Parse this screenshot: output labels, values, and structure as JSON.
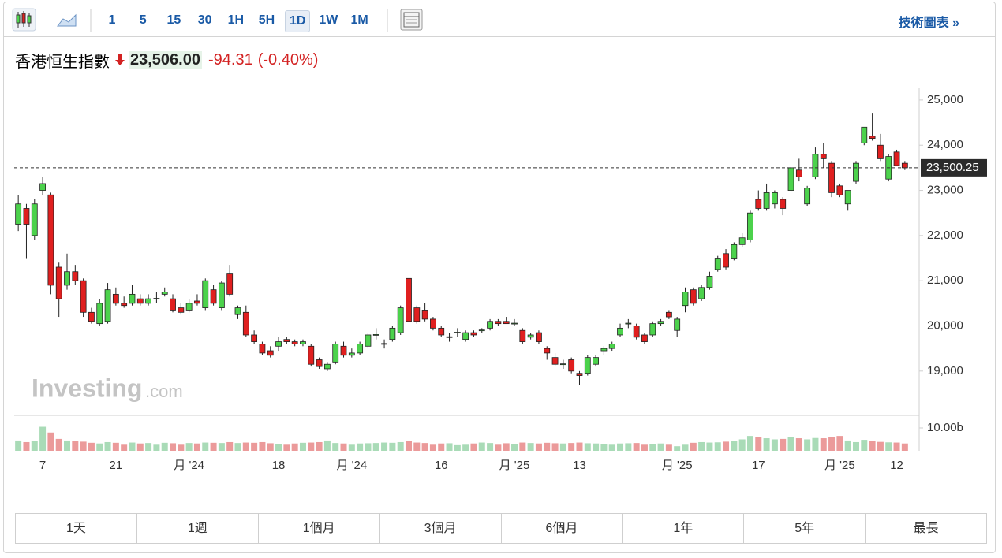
{
  "toolbar": {
    "intervals": [
      "1",
      "5",
      "15",
      "30",
      "1H",
      "5H",
      "1D",
      "1W",
      "1M"
    ],
    "selected_interval": "1D",
    "link": "技術圖表 »"
  },
  "quote": {
    "name": "香港恒生指數",
    "price": "23,506.00",
    "change": "-94.31",
    "change_percent": "(-0.40%)"
  },
  "chart_data": {
    "type": "candlestick",
    "watermark": [
      "Investing",
      ".com"
    ],
    "up_color": "#4cd24c",
    "down_color": "#e01f1f",
    "up_volume_color": "#a9dbb7",
    "down_volume_color": "#eb9a9a",
    "categories": [
      null,
      null,
      null,
      "7",
      null,
      null,
      null,
      null,
      null,
      null,
      null,
      null,
      "21",
      null,
      null,
      null,
      null,
      null,
      null,
      null,
      null,
      "月 '24",
      null,
      null,
      null,
      null,
      null,
      null,
      null,
      null,
      null,
      null,
      "18",
      null,
      null,
      null,
      null,
      null,
      null,
      null,
      null,
      "月 '24",
      null,
      null,
      null,
      null,
      null,
      null,
      null,
      null,
      null,
      null,
      "16",
      null,
      null,
      null,
      null,
      null,
      null,
      null,
      null,
      "月 '25",
      null,
      null,
      null,
      null,
      null,
      null,
      null,
      "13",
      null,
      null,
      null,
      null,
      null,
      null,
      null,
      null,
      null,
      null,
      null,
      "月 '25",
      null,
      null,
      null,
      null,
      null,
      null,
      null,
      null,
      null,
      "17",
      null,
      null,
      null,
      null,
      null,
      null,
      null,
      null,
      null,
      "月 '25",
      null,
      null,
      null,
      null,
      null,
      null,
      "12",
      null
    ],
    "ohlc": [
      [
        22250,
        22900,
        22100,
        22700
      ],
      [
        22600,
        22700,
        21500,
        22250
      ],
      [
        22000,
        22800,
        21900,
        22700
      ],
      [
        23000,
        23300,
        22900,
        23150
      ],
      [
        22900,
        22950,
        20700,
        20900
      ],
      [
        21300,
        21400,
        20200,
        20600
      ],
      [
        20900,
        21600,
        20800,
        21200
      ],
      [
        21200,
        21350,
        20900,
        21000
      ],
      [
        21000,
        21050,
        20200,
        20300
      ],
      [
        20300,
        20400,
        20050,
        20100
      ],
      [
        20050,
        20600,
        20000,
        20500
      ],
      [
        20100,
        20950,
        20050,
        20800
      ],
      [
        20700,
        20850,
        20450,
        20500
      ],
      [
        20500,
        20650,
        20400,
        20450
      ],
      [
        20500,
        20900,
        20450,
        20700
      ],
      [
        20600,
        20700,
        20450,
        20500
      ],
      [
        20500,
        20700,
        20450,
        20600
      ],
      [
        20600,
        20750,
        20500,
        20610
      ],
      [
        20700,
        20850,
        20650,
        20750
      ],
      [
        20600,
        20700,
        20300,
        20350
      ],
      [
        20400,
        20500,
        20250,
        20300
      ],
      [
        20350,
        20600,
        20300,
        20500
      ],
      [
        20550,
        20700,
        20450,
        20500
      ],
      [
        20400,
        21050,
        20350,
        21000
      ],
      [
        20800,
        20900,
        20450,
        20500
      ],
      [
        20400,
        21000,
        20350,
        20950
      ],
      [
        21150,
        21350,
        20650,
        20700
      ],
      [
        20250,
        20450,
        20150,
        20400
      ],
      [
        20300,
        20450,
        19750,
        19800
      ],
      [
        19800,
        19900,
        19600,
        19650
      ],
      [
        19600,
        19650,
        19350,
        19400
      ],
      [
        19450,
        19550,
        19300,
        19350
      ],
      [
        19550,
        19750,
        19450,
        19650
      ],
      [
        19700,
        19750,
        19600,
        19650
      ],
      [
        19650,
        19700,
        19550,
        19600
      ],
      [
        19600,
        19700,
        19550,
        19650
      ],
      [
        19550,
        19600,
        19100,
        19150
      ],
      [
        19250,
        19300,
        19050,
        19100
      ],
      [
        19050,
        19200,
        19000,
        19150
      ],
      [
        19200,
        19650,
        19150,
        19600
      ],
      [
        19550,
        19650,
        19300,
        19350
      ],
      [
        19350,
        19500,
        19300,
        19400
      ],
      [
        19400,
        19650,
        19350,
        19600
      ],
      [
        19550,
        19850,
        19500,
        19800
      ],
      [
        19800,
        19950,
        19700,
        19810
      ],
      [
        19600,
        19700,
        19500,
        19610
      ],
      [
        19700,
        20000,
        19650,
        19950
      ],
      [
        19850,
        20450,
        19800,
        20400
      ],
      [
        21050,
        21050,
        20100,
        20100
      ],
      [
        20400,
        20450,
        20050,
        20100
      ],
      [
        20350,
        20500,
        20100,
        20150
      ],
      [
        20150,
        20200,
        19900,
        19950
      ],
      [
        19950,
        20000,
        19750,
        19800
      ],
      [
        19750,
        19850,
        19650,
        19760
      ],
      [
        19850,
        19950,
        19750,
        19860
      ],
      [
        19700,
        19900,
        19650,
        19850
      ],
      [
        19850,
        19900,
        19750,
        19800
      ],
      [
        19900,
        19950,
        19850,
        19910
      ],
      [
        19950,
        20150,
        19900,
        20100
      ],
      [
        20100,
        20150,
        20000,
        20050
      ],
      [
        20100,
        20200,
        20050,
        20050
      ],
      [
        20050,
        20150,
        20000,
        20060
      ],
      [
        19900,
        19950,
        19600,
        19650
      ],
      [
        19750,
        19850,
        19700,
        19800
      ],
      [
        19850,
        19900,
        19600,
        19650
      ],
      [
        19500,
        19550,
        19250,
        19400
      ],
      [
        19300,
        19400,
        19100,
        19150
      ],
      [
        19150,
        19250,
        19050,
        19160
      ],
      [
        19250,
        19300,
        18950,
        19000
      ],
      [
        18950,
        19000,
        18700,
        18900
      ],
      [
        18950,
        19350,
        18900,
        19300
      ],
      [
        19150,
        19350,
        19100,
        19300
      ],
      [
        19450,
        19550,
        19350,
        19500
      ],
      [
        19500,
        19650,
        19450,
        19600
      ],
      [
        19800,
        20050,
        19750,
        19950
      ],
      [
        20050,
        20150,
        19950,
        20060
      ],
      [
        20000,
        20050,
        19700,
        19750
      ],
      [
        19800,
        19850,
        19600,
        19650
      ],
      [
        19800,
        20100,
        19750,
        20050
      ],
      [
        20050,
        20150,
        20000,
        20100
      ],
      [
        20300,
        20350,
        20150,
        20200
      ],
      [
        19900,
        20200,
        19750,
        20150
      ],
      [
        20450,
        20850,
        20300,
        20750
      ],
      [
        20800,
        20850,
        20450,
        20500
      ],
      [
        20600,
        20900,
        20550,
        20850
      ],
      [
        20850,
        21200,
        20800,
        21100
      ],
      [
        21250,
        21550,
        21200,
        21500
      ],
      [
        21600,
        21700,
        21250,
        21300
      ],
      [
        21500,
        21850,
        21450,
        21800
      ],
      [
        21800,
        22050,
        21750,
        21950
      ],
      [
        21900,
        22550,
        21850,
        22500
      ],
      [
        22800,
        23000,
        22550,
        22600
      ],
      [
        22600,
        23150,
        22550,
        22950
      ],
      [
        22700,
        23000,
        22600,
        22950
      ],
      [
        22800,
        22850,
        22450,
        22600
      ],
      [
        23000,
        23500,
        22950,
        23500
      ],
      [
        23450,
        23700,
        23200,
        23300
      ],
      [
        22700,
        23100,
        22650,
        23050
      ],
      [
        23300,
        23950,
        23250,
        23800
      ],
      [
        23800,
        24050,
        23500,
        23700
      ],
      [
        23600,
        23650,
        22850,
        22950
      ],
      [
        23100,
        23150,
        22850,
        22900
      ],
      [
        22700,
        23000,
        22550,
        23000
      ],
      [
        23200,
        23650,
        23150,
        23600
      ],
      [
        24050,
        24400,
        24000,
        24400
      ],
      [
        24200,
        24700,
        24100,
        24150
      ],
      [
        24000,
        24250,
        23650,
        23700
      ],
      [
        23250,
        23800,
        23200,
        23750
      ],
      [
        23850,
        23900,
        23550,
        23550
      ],
      [
        23600,
        23650,
        23450,
        23500
      ]
    ],
    "volume": [
      4.5,
      3.8,
      4.2,
      10.5,
      8.0,
      5.2,
      4.5,
      4.2,
      4.0,
      3.5,
      3.2,
      3.8,
      3.5,
      3.0,
      3.6,
      3.2,
      3.4,
      3.0,
      3.5,
      3.3,
      3.0,
      3.4,
      3.2,
      3.6,
      3.5,
      3.4,
      3.8,
      3.4,
      3.6,
      3.5,
      3.8,
      3.3,
      3.1,
      3.0,
      3.2,
      3.5,
      3.6,
      3.8,
      4.5,
      3.4,
      3.2,
      3.0,
      3.2,
      3.3,
      3.4,
      3.6,
      3.5,
      3.8,
      4.2,
      3.6,
      3.4,
      3.0,
      3.2,
      3.3,
      2.8,
      3.0,
      3.2,
      3.6,
      3.4,
      3.0,
      3.3,
      3.1,
      3.6,
      3.4,
      3.2,
      3.5,
      3.3,
      3.2,
      3.4,
      3.6,
      3.3,
      3.2,
      3.1,
      3.0,
      3.2,
      3.3,
      3.4,
      3.0,
      3.1,
      3.2,
      3.0,
      2.0,
      3.0,
      3.5,
      3.8,
      3.6,
      3.7,
      4.0,
      4.2,
      5.0,
      6.5,
      6.2,
      5.5,
      5.0,
      5.2,
      6.0,
      5.5,
      5.0,
      5.6,
      5.5,
      6.0,
      6.5,
      4.5,
      3.8,
      4.8,
      4.2,
      3.9,
      3.7,
      3.6,
      3.2
    ],
    "ylim": [
      18020,
      25260
    ],
    "yticks": [
      {
        "value": 19000,
        "label": "19,000"
      },
      {
        "value": 20000,
        "label": "20,000"
      },
      {
        "value": 21000,
        "label": "21,000"
      },
      {
        "value": 22000,
        "label": "22,000"
      },
      {
        "value": 23000,
        "label": "23,000"
      },
      {
        "value": 24000,
        "label": "24,000"
      },
      {
        "value": 25000,
        "label": "25,000"
      }
    ],
    "volume_lim": [
      0,
      15.5
    ],
    "volume_ticks": [
      {
        "value": 10,
        "label": "10.00b"
      }
    ],
    "last_price": {
      "value": 23500.25,
      "label": "23,500.25"
    }
  },
  "ranges": [
    "1天",
    "1週",
    "1個月",
    "3個月",
    "6個月",
    "1年",
    "5年",
    "最長"
  ]
}
